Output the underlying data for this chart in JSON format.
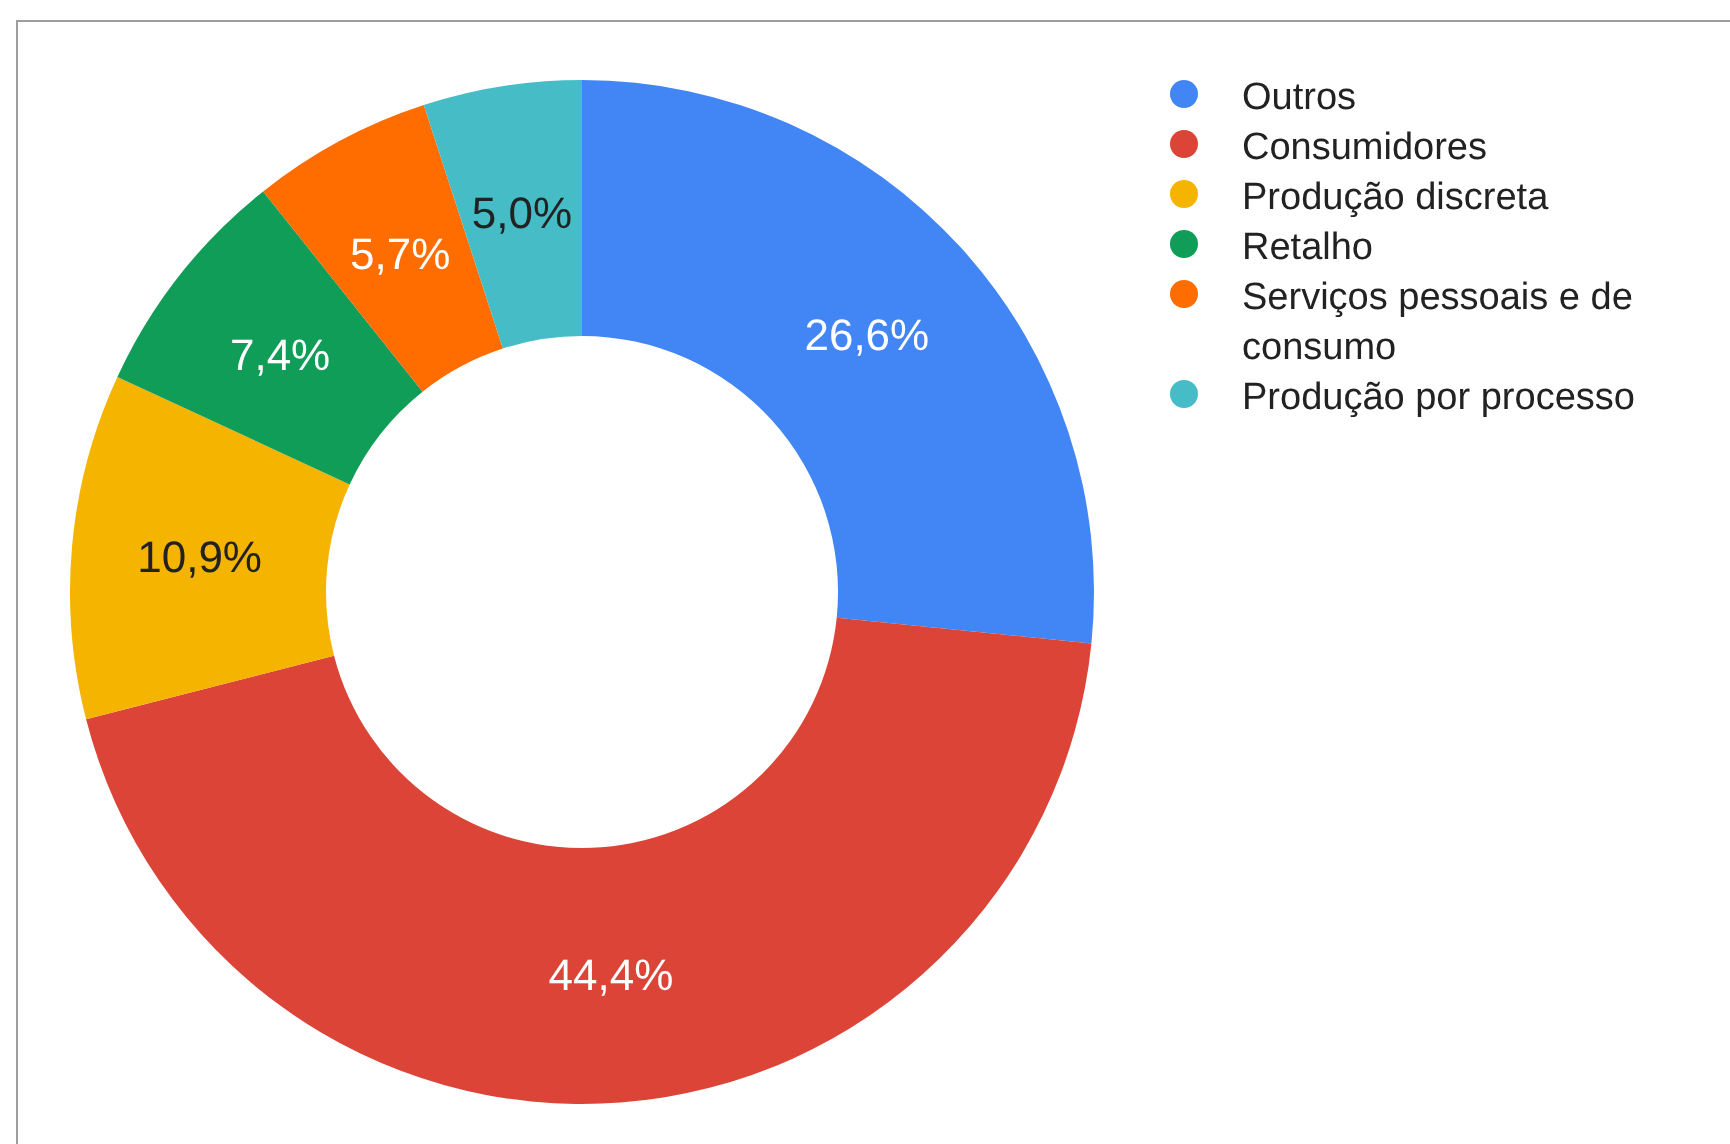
{
  "chart_data": {
    "type": "donut",
    "categories": [
      "Outros",
      "Consumidores",
      "Produção discreta",
      "Retalho",
      "Serviços pessoais e de consumo",
      "Produção por processo"
    ],
    "values": [
      26.6,
      44.4,
      10.9,
      7.4,
      5.7,
      5.0
    ],
    "colors": [
      "#4285f4",
      "#db4437",
      "#f4b400",
      "#0f9d58",
      "#ff6d01",
      "#46bdc6"
    ],
    "value_labels": [
      "26,6%",
      "44,4%",
      "10,9%",
      "7,4%",
      "5,7%",
      "5,0%"
    ],
    "legend": "top right"
  }
}
